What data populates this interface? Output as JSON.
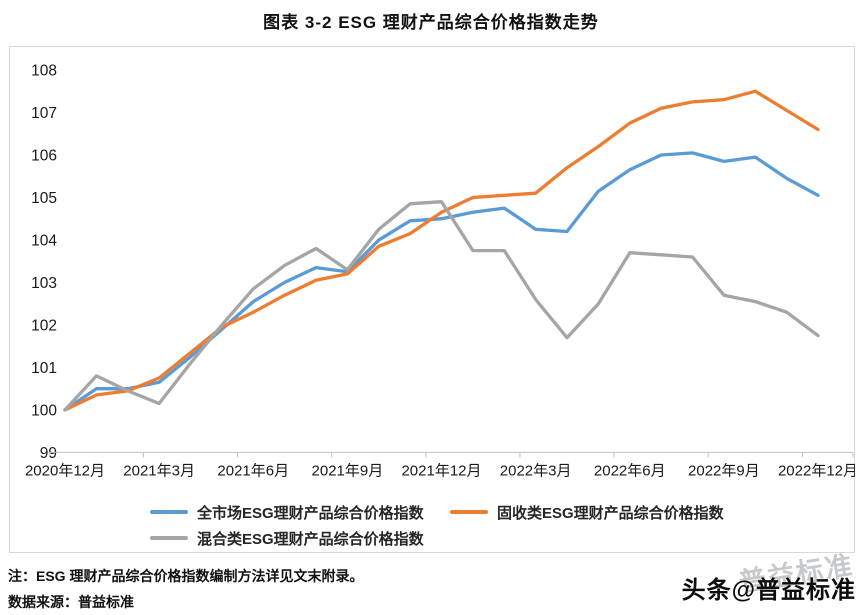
{
  "title": "图表 3-2  ESG 理财产品综合价格指数走势",
  "notes": {
    "note": "注：ESG 理财产品综合价格指数编制方法详见文末附录。",
    "source": "数据来源：普益标准"
  },
  "watermark": {
    "back": "普益标准",
    "front": "头条@普益标准"
  },
  "colors": {
    "all_market": "#5B9BD5",
    "fixed_income": "#ED7D31",
    "mixed": "#A5A5A5",
    "axis_line": "#BFBFBF",
    "box_border": "#D9D9D9",
    "text": "#262626"
  },
  "chart_data": {
    "type": "line",
    "title": "图表 3-2  ESG 理财产品综合价格指数走势",
    "xlabel": "",
    "ylabel": "",
    "ylim": [
      99,
      108
    ],
    "y_ticks": [
      99,
      100,
      101,
      102,
      103,
      104,
      105,
      106,
      107,
      108
    ],
    "grid": false,
    "legend_position": "bottom",
    "x": [
      "2020年12月",
      "2021年1月",
      "2021年2月",
      "2021年3月",
      "2021年4月",
      "2021年5月",
      "2021年6月",
      "2021年7月",
      "2021年8月",
      "2021年9月",
      "2021年10月",
      "2021年11月",
      "2021年12月",
      "2022年1月",
      "2022年2月",
      "2022年3月",
      "2022年4月",
      "2022年5月",
      "2022年6月",
      "2022年7月",
      "2022年8月",
      "2022年9月",
      "2022年10月",
      "2022年11月",
      "2022年12月"
    ],
    "x_tick_labels": [
      "2020年12月",
      "2021年3月",
      "2021年6月",
      "2021年9月",
      "2021年12月",
      "2022年3月",
      "2022年6月",
      "2022年9月",
      "2022年12月"
    ],
    "series": [
      {
        "name": "全市场ESG理财产品综合价格指数",
        "color": "#5B9BD5",
        "values": [
          100,
          100.5,
          100.5,
          100.65,
          101.25,
          101.9,
          102.55,
          103.0,
          103.35,
          103.25,
          104.0,
          104.45,
          104.5,
          104.65,
          104.75,
          104.25,
          104.2,
          105.15,
          105.65,
          106.0,
          106.05,
          105.85,
          105.95,
          105.45,
          105.05
        ]
      },
      {
        "name": "固收类ESG理财产品综合价格指数",
        "color": "#ED7D31",
        "values": [
          100,
          100.35,
          100.45,
          100.75,
          101.35,
          101.95,
          102.3,
          102.7,
          103.05,
          103.2,
          103.85,
          104.15,
          104.65,
          105.0,
          105.05,
          105.1,
          105.7,
          106.2,
          106.75,
          107.1,
          107.25,
          107.3,
          107.5,
          107.05,
          106.6
        ]
      },
      {
        "name": "混合类ESG理财产品综合价格指数",
        "color": "#A5A5A5",
        "values": [
          100,
          100.8,
          100.45,
          100.15,
          101.1,
          102.0,
          102.85,
          103.4,
          103.8,
          103.3,
          104.25,
          104.85,
          104.9,
          103.75,
          103.75,
          102.6,
          101.7,
          102.5,
          103.7,
          103.65,
          103.6,
          102.7,
          102.55,
          102.3,
          101.75
        ]
      }
    ]
  }
}
